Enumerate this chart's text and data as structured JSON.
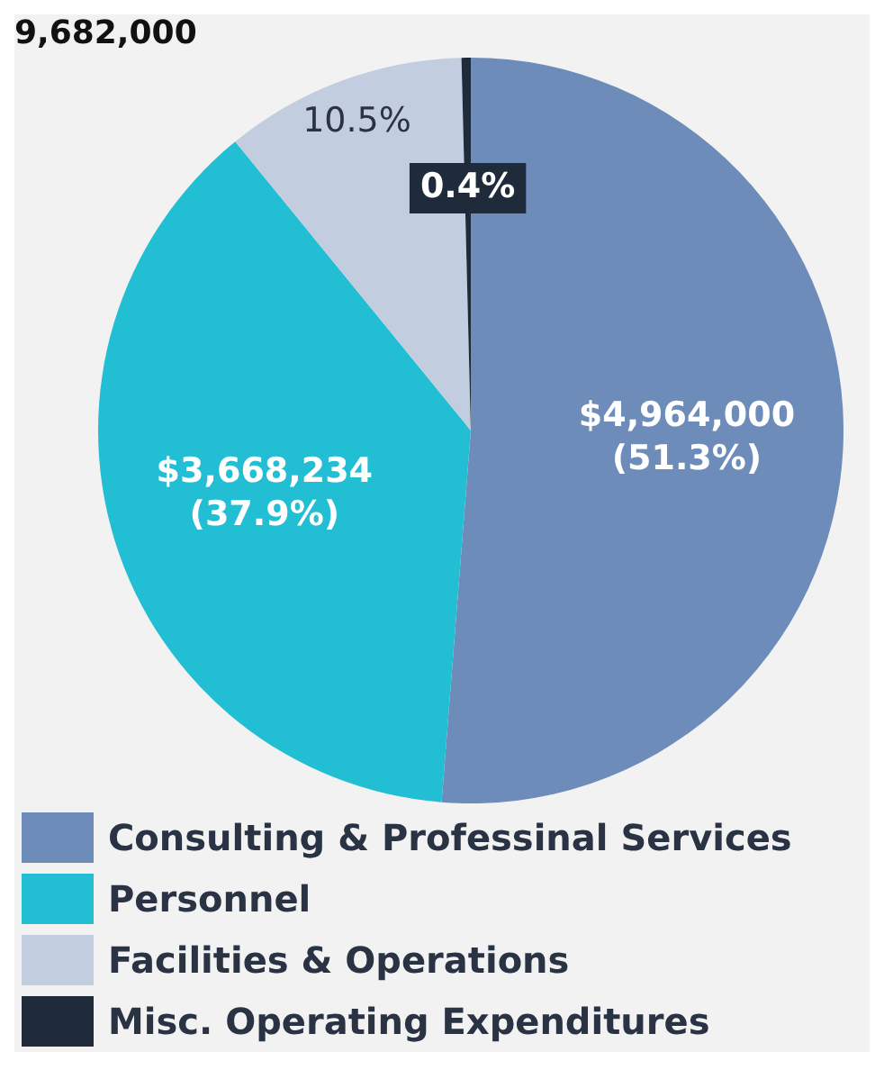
{
  "chart_data": {
    "type": "pie",
    "title": "9,682,000",
    "categories": [
      "Consulting & Professinal Services",
      "Personnel",
      "Facilities & Operations",
      "Misc. Operating Expenditures"
    ],
    "values": [
      51.3,
      37.9,
      10.5,
      0.4
    ],
    "colors": [
      "#6e8cba",
      "#22bfd4",
      "#c3cde0",
      "#1f2b3a"
    ],
    "value_labels": [
      "$4,964,000\n(51.3%)",
      "$3,668,234\n(37.9%)",
      "10.5%",
      "0.4%"
    ],
    "legend": "bottom"
  }
}
